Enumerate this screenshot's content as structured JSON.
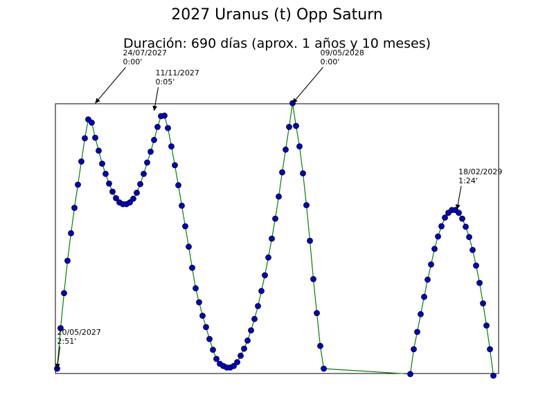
{
  "chart_data": {
    "type": "line",
    "title": "2027 Uranus (t) Opp Saturn",
    "subtitle": "Duración: 690 días (aprox. 1 años y 10 meses)",
    "xlabel": "",
    "ylabel": "",
    "grid": false,
    "axes_visible": false,
    "colors": {
      "line": "#008000",
      "marker_fill": "#0000cc",
      "marker_edge": "#000000"
    },
    "series": [
      {
        "points": [
          [
            0,
            0.4
          ],
          [
            4,
            7.9
          ],
          [
            8,
            14.4
          ],
          [
            12,
            20.4
          ],
          [
            16,
            25.5
          ],
          [
            20,
            30.2
          ],
          [
            24,
            34.5
          ],
          [
            28,
            38.8
          ],
          [
            32,
            43.1
          ],
          [
            36,
            46.6
          ],
          [
            40,
            46.0
          ],
          [
            44,
            43.2
          ],
          [
            48,
            40.8
          ],
          [
            52,
            38.4
          ],
          [
            56,
            36.5
          ],
          [
            60,
            34.7
          ],
          [
            64,
            33.2
          ],
          [
            68,
            32.0
          ],
          [
            72,
            31.2
          ],
          [
            76,
            30.9
          ],
          [
            80,
            30.9
          ],
          [
            84,
            31.2
          ],
          [
            88,
            31.9
          ],
          [
            92,
            33.0
          ],
          [
            96,
            34.6
          ],
          [
            100,
            36.5
          ],
          [
            104,
            38.6
          ],
          [
            108,
            40.6
          ],
          [
            112,
            42.8
          ],
          [
            116,
            45.2
          ],
          [
            120,
            47.2
          ],
          [
            124,
            47.3
          ],
          [
            128,
            45.0
          ],
          [
            132,
            41.6
          ],
          [
            136,
            38.1
          ],
          [
            140,
            34.4
          ],
          [
            144,
            30.6
          ],
          [
            148,
            26.8
          ],
          [
            152,
            23.0
          ],
          [
            156,
            19.1
          ],
          [
            160,
            15.3
          ],
          [
            164,
            12.7
          ],
          [
            168,
            10.2
          ],
          [
            172,
            8.1
          ],
          [
            176,
            5.9
          ],
          [
            180,
            3.9
          ],
          [
            184,
            2.2
          ],
          [
            188,
            1.3
          ],
          [
            192,
            0.9
          ],
          [
            196,
            0.6
          ],
          [
            200,
            0.6
          ],
          [
            204,
            0.9
          ],
          [
            208,
            1.6
          ],
          [
            212,
            2.8
          ],
          [
            216,
            4.1
          ],
          [
            220,
            5.6
          ],
          [
            224,
            7.5
          ],
          [
            228,
            9.6
          ],
          [
            232,
            12.0
          ],
          [
            236,
            14.8
          ],
          [
            240,
            17.7
          ],
          [
            244,
            21.0
          ],
          [
            248,
            24.5
          ],
          [
            252,
            28.2
          ],
          [
            256,
            32.3
          ],
          [
            260,
            36.8
          ],
          [
            264,
            41.0
          ],
          [
            268,
            45.2
          ],
          [
            272,
            49.6
          ],
          [
            276,
            45.4
          ],
          [
            280,
            41.6
          ],
          [
            284,
            36.6
          ],
          [
            288,
            30.7
          ],
          [
            292,
            24.1
          ],
          [
            296,
            17.0
          ],
          [
            300,
            10.7
          ],
          [
            304,
            4.6
          ],
          [
            308,
            0.4
          ],
          [
            408,
            -0.6
          ],
          [
            412,
            4.0
          ],
          [
            416,
            7.2
          ],
          [
            420,
            10.5
          ],
          [
            424,
            13.7
          ],
          [
            428,
            16.9
          ],
          [
            432,
            19.7
          ],
          [
            436,
            22.6
          ],
          [
            440,
            24.9
          ],
          [
            444,
            26.8
          ],
          [
            448,
            28.4
          ],
          [
            452,
            29.3
          ],
          [
            456,
            29.8
          ],
          [
            460,
            29.8
          ],
          [
            464,
            29.3
          ],
          [
            468,
            28.2
          ],
          [
            472,
            26.7
          ],
          [
            476,
            24.8
          ],
          [
            480,
            22.4
          ],
          [
            484,
            19.5
          ],
          [
            488,
            16.3
          ],
          [
            492,
            12.5
          ],
          [
            496,
            8.4
          ],
          [
            500,
            4.0
          ],
          [
            504,
            -0.9
          ]
        ]
      }
    ],
    "xlim": [
      -2,
      510
    ],
    "ylim": [
      -0.5,
      49.5
    ],
    "annotations": [
      {
        "label": "20/05/2027\n2:51'",
        "at": [
          0,
          0.4
        ]
      },
      {
        "label": "24/07/2027\n0:00'",
        "at": [
          44,
          49.6
        ]
      },
      {
        "label": "11/11/2027\n0:05'",
        "at": [
          112,
          48.2
        ]
      },
      {
        "label": "09/05/2028\n0:00'",
        "at": [
          272,
          49.6
        ]
      },
      {
        "label": "18/02/2029\n1:24'",
        "at": [
          462,
          29.9
        ]
      }
    ]
  }
}
